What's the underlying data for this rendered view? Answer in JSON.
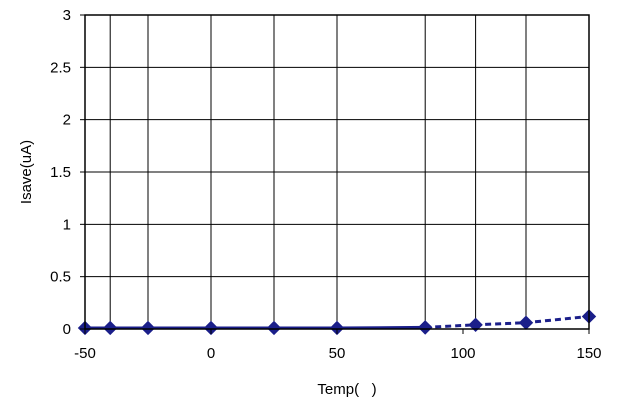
{
  "chart_data": {
    "type": "line",
    "title": "",
    "xlabel": "Temp(   )",
    "ylabel": "Isave(uA)",
    "xlim": [
      -50,
      150
    ],
    "ylim": [
      0,
      3
    ],
    "x_ticks": [
      -50,
      0,
      50,
      100,
      150
    ],
    "x_tick_labels": [
      "-50",
      "0",
      "50",
      "100",
      "150"
    ],
    "x_gridlines": [
      -50,
      -40,
      -25,
      0,
      25,
      50,
      85,
      105,
      125,
      150
    ],
    "y_ticks": [
      0,
      0.5,
      1,
      1.5,
      2,
      2.5,
      3
    ],
    "y_tick_labels": [
      "0",
      "0.5",
      "1",
      "1.5",
      "2",
      "2.5",
      "3"
    ],
    "grid": true,
    "legend": "none",
    "series": [
      {
        "color": "#1b1f8a",
        "line_style": "solid",
        "marker": "diamond",
        "x": [
          -50,
          -40,
          -25,
          0,
          25,
          50,
          85
        ],
        "y": [
          0.01,
          0.01,
          0.01,
          0.01,
          0.01,
          0.01,
          0.015
        ]
      },
      {
        "color": "#1b1f8a",
        "line_style": "dashed",
        "marker": "diamond",
        "x": [
          85,
          105,
          125,
          150
        ],
        "y": [
          0.015,
          0.04,
          0.06,
          0.12
        ]
      }
    ]
  }
}
